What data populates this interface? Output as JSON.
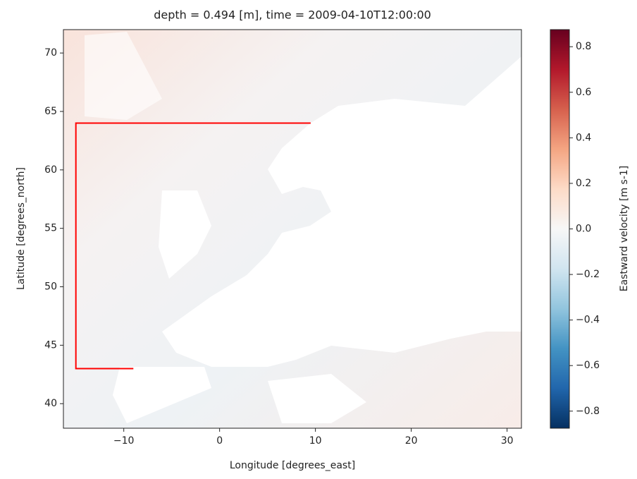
{
  "chart_data": {
    "type": "heatmap",
    "title": "depth = 0.494 [m], time = 2009-04-10T12:00:00",
    "x_label": "Longitude [degrees_east]",
    "y_label": "Latitude [degrees_north]",
    "colorbar_label": "Eastward velocity [m s-1]",
    "xlim": [
      -16.3,
      31.5
    ],
    "ylim": [
      37.9,
      72.0
    ],
    "xticks": [
      {
        "value": -10,
        "label": "−10"
      },
      0,
      10,
      20,
      30
    ],
    "yticks": [
      40,
      45,
      50,
      55,
      60,
      65,
      70
    ],
    "clim": [
      -0.875,
      0.875
    ],
    "cticks": [
      {
        "value": -0.8,
        "label": "−0.8"
      },
      {
        "value": -0.6,
        "label": "−0.6"
      },
      {
        "value": -0.4,
        "label": "−0.4"
      },
      {
        "value": -0.2,
        "label": "−0.2"
      },
      {
        "value": 0.0,
        "label": "0.0"
      },
      {
        "value": 0.2,
        "label": "0.2"
      },
      {
        "value": 0.4,
        "label": "0.4"
      },
      {
        "value": 0.6,
        "label": "0.6"
      },
      {
        "value": 0.8,
        "label": "0.8"
      }
    ],
    "cmap_colors": [
      "#053061",
      "#2166ac",
      "#4393c3",
      "#92c5de",
      "#d1e5f0",
      "#f7f7f7",
      "#fddbc7",
      "#f4a582",
      "#d6604d",
      "#b2182b",
      "#67001f"
    ],
    "series": [
      {
        "color": "#ff0000",
        "x": [
          9.5,
          -15,
          -15,
          -9
        ],
        "y": [
          64,
          64,
          43,
          43
        ]
      }
    ]
  }
}
